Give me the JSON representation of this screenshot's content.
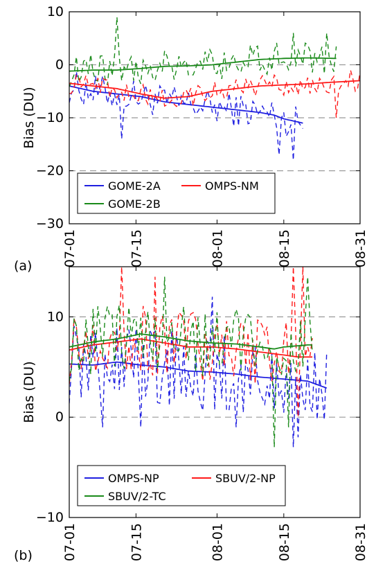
{
  "chart_data": [
    {
      "type": "line",
      "panel_label": "(a)",
      "ylabel": "Bias (DU)",
      "ylim": [
        -30,
        10
      ],
      "yticks": [
        {
          "value": 10,
          "label": "10"
        },
        {
          "value": 0,
          "label": "0"
        },
        {
          "value": -10,
          "label": "−10"
        },
        {
          "value": -20,
          "label": "−20"
        },
        {
          "value": -30,
          "label": "−30"
        }
      ],
      "xlim": [
        0,
        61
      ],
      "xticks": [
        {
          "value": 0,
          "label": "07-01"
        },
        {
          "value": 14,
          "label": "07-15"
        },
        {
          "value": 31,
          "label": "08-01"
        },
        {
          "value": 45,
          "label": "08-15"
        },
        {
          "value": 61,
          "label": "08-31"
        }
      ],
      "grid_y": [
        0,
        -10,
        -20
      ],
      "legend": {
        "placement": "lower-left",
        "columns": 2
      },
      "series": [
        {
          "name": "GOME-2A",
          "color": "#1f1fe0",
          "x_range": [
            0,
            49
          ],
          "dashed_amplitude": 3.2,
          "trend": [
            [
              0,
              -4
            ],
            [
              5,
              -5
            ],
            [
              10,
              -5.5
            ],
            [
              15,
              -6
            ],
            [
              20,
              -7
            ],
            [
              25,
              -7.5
            ],
            [
              30,
              -8
            ],
            [
              35,
              -8.5
            ],
            [
              40,
              -9
            ],
            [
              43,
              -9.5
            ],
            [
              45,
              -10.2
            ],
            [
              49,
              -11
            ]
          ],
          "spikes": [
            [
              11,
              -14
            ],
            [
              44,
              -17
            ],
            [
              47,
              -18
            ],
            [
              45,
              -9
            ]
          ]
        },
        {
          "name": "GOME-2B",
          "color": "#1a8a1a",
          "x_range": [
            0,
            56
          ],
          "dashed_amplitude": 3,
          "trend": [
            [
              0,
              -1.2
            ],
            [
              5,
              -1
            ],
            [
              10,
              -1
            ],
            [
              15,
              -0.7
            ],
            [
              20,
              -0.3
            ],
            [
              25,
              -0.2
            ],
            [
              30,
              0
            ],
            [
              35,
              0.5
            ],
            [
              40,
              1
            ],
            [
              45,
              1.2
            ],
            [
              50,
              1.3
            ],
            [
              56,
              1.2
            ]
          ],
          "spikes": [
            [
              10,
              9
            ],
            [
              11,
              -3
            ],
            [
              47,
              6
            ],
            [
              54,
              6
            ]
          ]
        },
        {
          "name": "OMPS-NM",
          "color": "#ff1a1a",
          "x_range": [
            0,
            61
          ],
          "dashed_amplitude": 2,
          "trend": [
            [
              0,
              -3.5
            ],
            [
              5,
              -4
            ],
            [
              10,
              -4.5
            ],
            [
              15,
              -5.5
            ],
            [
              20,
              -6.3
            ],
            [
              25,
              -6
            ],
            [
              30,
              -5
            ],
            [
              35,
              -4.5
            ],
            [
              40,
              -4
            ],
            [
              45,
              -3.8
            ],
            [
              50,
              -3.6
            ],
            [
              55,
              -3.3
            ],
            [
              61,
              -3
            ]
          ],
          "spikes": [
            [
              56,
              -10
            ],
            [
              58,
              -3
            ],
            [
              59,
              -1
            ]
          ]
        }
      ]
    },
    {
      "type": "line",
      "panel_label": "(b)",
      "ylabel": "Bias (DU)",
      "ylim": [
        -10,
        15
      ],
      "yticks": [
        {
          "value": 10,
          "label": "10"
        },
        {
          "value": 0,
          "label": "0"
        },
        {
          "value": -10,
          "label": "−10"
        }
      ],
      "xlim": [
        0,
        61
      ],
      "xticks": [
        {
          "value": 0,
          "label": "07-01"
        },
        {
          "value": 14,
          "label": "07-15"
        },
        {
          "value": 31,
          "label": "08-01"
        },
        {
          "value": 45,
          "label": "08-15"
        },
        {
          "value": 61,
          "label": "08-31"
        }
      ],
      "grid_y": [
        10,
        0
      ],
      "legend": {
        "placement": "lower-left",
        "columns": 2
      },
      "series": [
        {
          "name": "OMPS-NP",
          "color": "#1f1fe0",
          "x_range": [
            0,
            54
          ],
          "dashed_amplitude": 4,
          "trend": [
            [
              0,
              5.3
            ],
            [
              5,
              5.2
            ],
            [
              10,
              5.5
            ],
            [
              15,
              5.2
            ],
            [
              20,
              5
            ],
            [
              25,
              4.6
            ],
            [
              30,
              4.5
            ],
            [
              35,
              4.3
            ],
            [
              40,
              4
            ],
            [
              45,
              3.8
            ],
            [
              50,
              3.6
            ],
            [
              54,
              2.9
            ]
          ],
          "spikes": [
            [
              7,
              -1
            ],
            [
              15,
              -1
            ],
            [
              30,
              12
            ],
            [
              35,
              -1
            ],
            [
              47,
              -3
            ],
            [
              48,
              -2
            ]
          ]
        },
        {
          "name": "SBUV/2-NP",
          "color": "#ff1a1a",
          "x_range": [
            0,
            51
          ],
          "dashed_amplitude": 3.5,
          "trend": [
            [
              0,
              6.7
            ],
            [
              5,
              7.2
            ],
            [
              10,
              7.5
            ],
            [
              15,
              7.8
            ],
            [
              20,
              7.4
            ],
            [
              25,
              7
            ],
            [
              30,
              7
            ],
            [
              35,
              6.8
            ],
            [
              40,
              6.5
            ],
            [
              45,
              6.2
            ],
            [
              48,
              6
            ],
            [
              51,
              6
            ]
          ],
          "spikes": [
            [
              11,
              15
            ],
            [
              18,
              14
            ],
            [
              47,
              15
            ],
            [
              48,
              0
            ],
            [
              49,
              15
            ]
          ]
        },
        {
          "name": "SBUV/2-TC",
          "color": "#1a8a1a",
          "x_range": [
            0,
            51
          ],
          "dashed_amplitude": 3.5,
          "trend": [
            [
              0,
              7
            ],
            [
              5,
              7.5
            ],
            [
              10,
              7.8
            ],
            [
              15,
              8.3
            ],
            [
              20,
              8
            ],
            [
              25,
              7.6
            ],
            [
              30,
              7.4
            ],
            [
              35,
              7.3
            ],
            [
              40,
              7
            ],
            [
              43,
              6.8
            ],
            [
              45,
              7
            ],
            [
              50,
              7.2
            ]
          ],
          "spikes": [
            [
              20,
              14
            ],
            [
              43,
              -3
            ],
            [
              46,
              -1
            ],
            [
              50,
              14
            ]
          ]
        }
      ]
    }
  ]
}
